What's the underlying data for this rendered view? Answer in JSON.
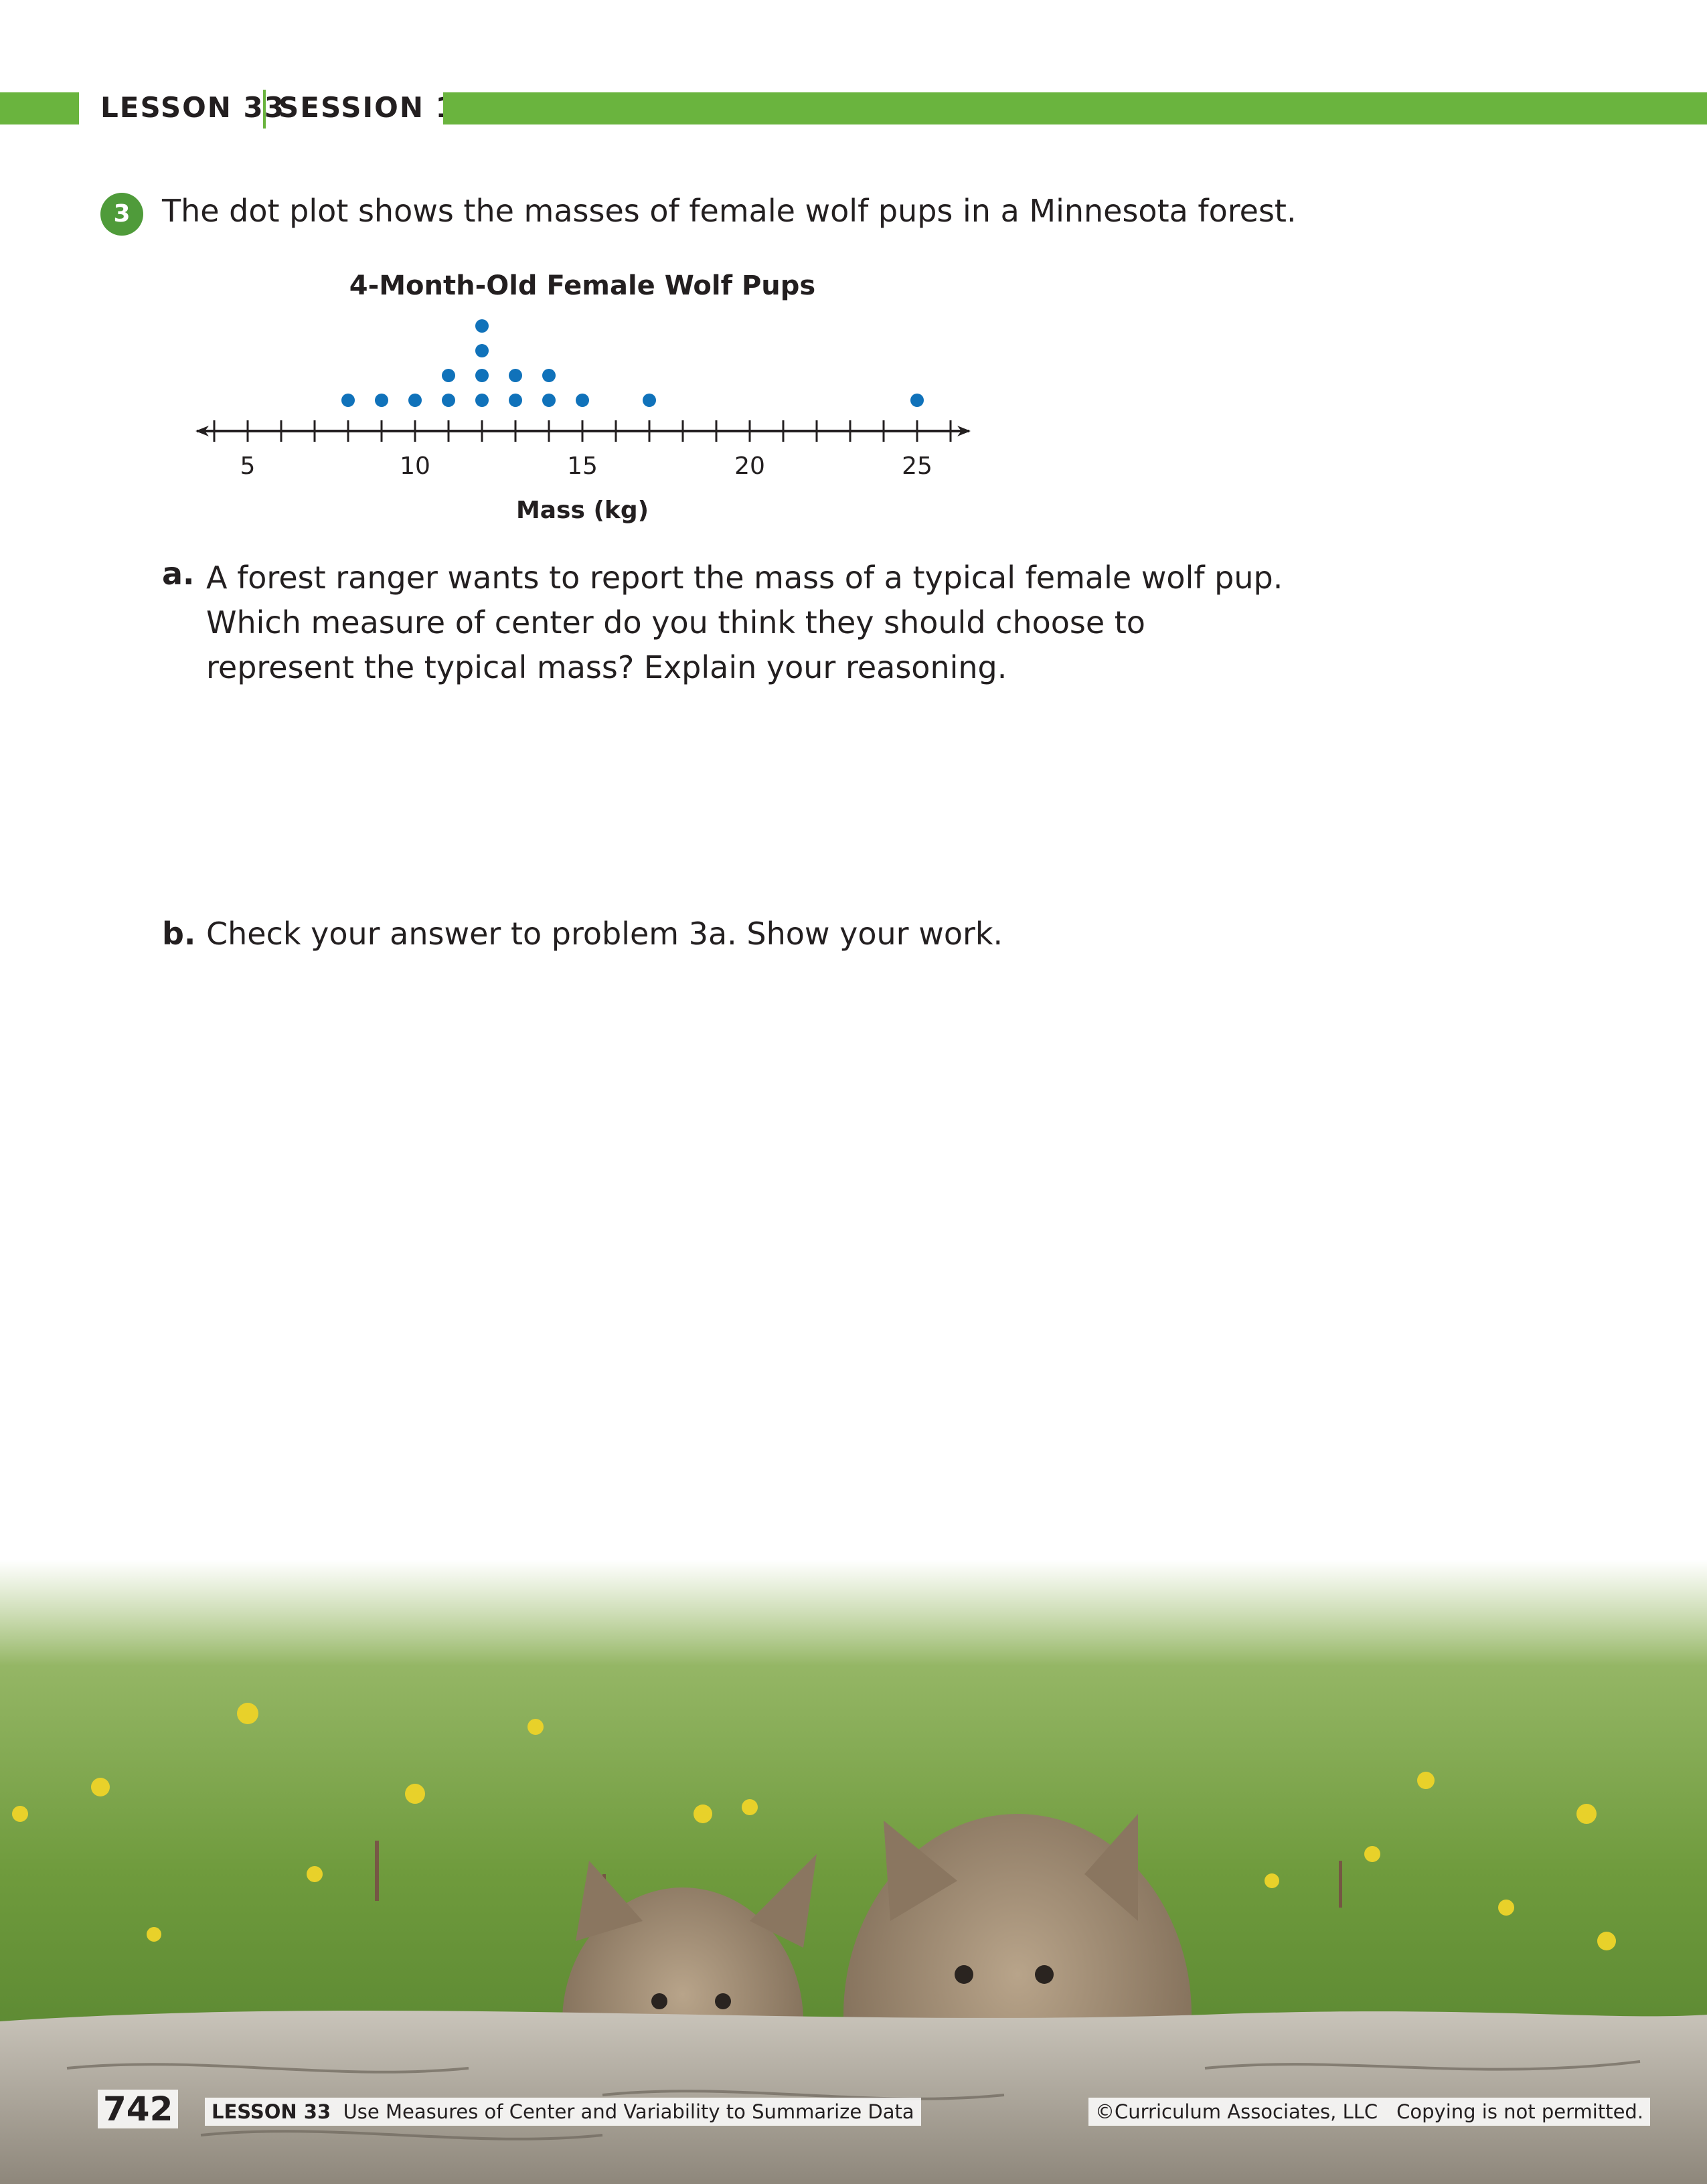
{
  "header": {
    "lesson": "LESSON 33",
    "session": "SESSION 1"
  },
  "question": {
    "number": "3",
    "prompt": "The dot plot shows the masses of female wolf pups in a Minnesota forest."
  },
  "chart_data": {
    "type": "scatter",
    "subtype": "dot plot",
    "title": "4-Month-Old Female Wolf Pups",
    "xlabel": "Mass (kg)",
    "xlim": [
      4,
      26
    ],
    "tick_labels": [
      5,
      10,
      15,
      20,
      25
    ],
    "minor_tick_step": 1,
    "points": [
      {
        "x": 8,
        "count": 1
      },
      {
        "x": 9,
        "count": 1
      },
      {
        "x": 10,
        "count": 1
      },
      {
        "x": 11,
        "count": 2
      },
      {
        "x": 12,
        "count": 4
      },
      {
        "x": 13,
        "count": 2
      },
      {
        "x": 14,
        "count": 2
      },
      {
        "x": 15,
        "count": 1
      },
      {
        "x": 17,
        "count": 1
      },
      {
        "x": 25,
        "count": 1
      }
    ],
    "dot_color": "#1072ba"
  },
  "parts": {
    "a_label": "a.",
    "a_text": "A forest ranger wants to report the mass of a typical female wolf pup. Which measure of center do you think they should choose to represent the typical mass? Explain your reasoning.",
    "b_label": "b.",
    "b_text": "Check your answer to problem 3a. Show your work."
  },
  "footer": {
    "page_number": "742",
    "lesson_label": "LESSON 33",
    "lesson_title": "Use Measures of Center and Variability to Summarize Data",
    "copyright": "©Curriculum Associates, LLC",
    "notice": "Copying is not permitted."
  },
  "colors": {
    "accent_green": "#6ab43e",
    "badge_green": "#4f9b3a",
    "dot_blue": "#1072ba"
  }
}
